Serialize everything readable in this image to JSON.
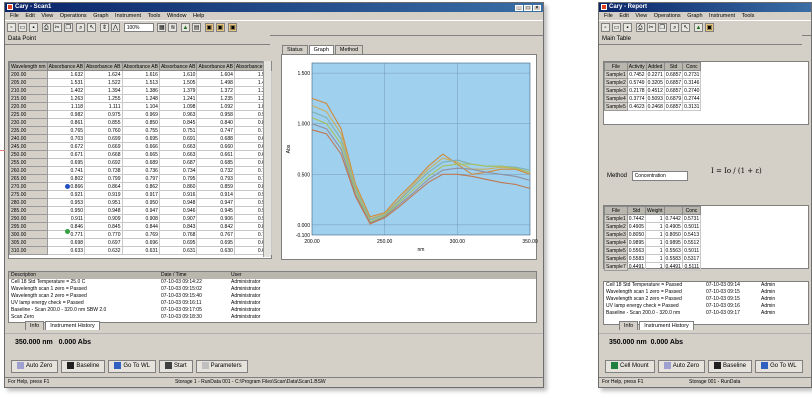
{
  "colors": {
    "title_bar": "#0a246a",
    "plot_bg": "#9fd0ee",
    "window_bg": "#d4d0c8",
    "connector": "#e07a7a"
  },
  "win1": {
    "title": "Cary - Scan1",
    "menu": [
      "File",
      "Edit",
      "View",
      "Operations",
      "Graph",
      "Instrument",
      "Tools",
      "Window",
      "Help"
    ],
    "toolbar_select": "100%",
    "panel_title": "Data Point",
    "tabs": [
      "Status",
      "Graph",
      "Method"
    ],
    "columns": [
      "Wavelength nm",
      "Absorbance AB",
      "Absorbance AB",
      "Absorbance AB",
      "Absorbance AB",
      "Absorbance AB",
      "Absorbance AB"
    ],
    "rows": [
      [
        "200.00",
        "1.632",
        "1.624",
        "1.616",
        "1.610",
        "1.604",
        "1.598"
      ],
      [
        "205.00",
        "1.531",
        "1.522",
        "1.513",
        "1.505",
        "1.498",
        "1.492"
      ],
      [
        "210.00",
        "1.402",
        "1.394",
        "1.386",
        "1.379",
        "1.372",
        "1.366"
      ],
      [
        "215.00",
        "1.263",
        "1.255",
        "1.248",
        "1.241",
        "1.235",
        "1.229"
      ],
      [
        "220.00",
        "1.118",
        "1.111",
        "1.104",
        "1.098",
        "1.092",
        "1.087"
      ],
      [
        "225.00",
        "0.982",
        "0.975",
        "0.969",
        "0.963",
        "0.958",
        "0.953"
      ],
      [
        "230.00",
        "0.861",
        "0.855",
        "0.850",
        "0.845",
        "0.840",
        "0.836"
      ],
      [
        "235.00",
        "0.765",
        "0.760",
        "0.755",
        "0.751",
        "0.747",
        "0.743"
      ],
      [
        "240.00",
        "0.703",
        "0.699",
        "0.695",
        "0.691",
        "0.688",
        "0.685"
      ],
      [
        "245.00",
        "0.672",
        "0.669",
        "0.666",
        "0.663",
        "0.660",
        "0.658"
      ],
      [
        "250.00",
        "0.671",
        "0.668",
        "0.665",
        "0.663",
        "0.661",
        "0.659"
      ],
      [
        "255.00",
        "0.695",
        "0.692",
        "0.689",
        "0.687",
        "0.685",
        "0.683"
      ],
      [
        "260.00",
        "0.741",
        "0.738",
        "0.736",
        "0.734",
        "0.732",
        "0.730"
      ],
      [
        "265.00",
        "0.802",
        "0.799",
        "0.797",
        "0.795",
        "0.793",
        "0.792"
      ],
      [
        "270.00",
        "0.866",
        "0.864",
        "0.862",
        "0.860",
        "0.859",
        "0.857"
      ],
      [
        "275.00",
        "0.921",
        "0.919",
        "0.917",
        "0.916",
        "0.914",
        "0.913"
      ],
      [
        "280.00",
        "0.953",
        "0.951",
        "0.950",
        "0.948",
        "0.947",
        "0.946"
      ],
      [
        "285.00",
        "0.950",
        "0.948",
        "0.947",
        "0.946",
        "0.945",
        "0.944"
      ],
      [
        "290.00",
        "0.911",
        "0.909",
        "0.908",
        "0.907",
        "0.906",
        "0.905"
      ],
      [
        "295.00",
        "0.846",
        "0.845",
        "0.844",
        "0.843",
        "0.842",
        "0.841"
      ],
      [
        "300.00",
        "0.771",
        "0.770",
        "0.769",
        "0.768",
        "0.767",
        "0.766"
      ],
      [
        "305.00",
        "0.698",
        "0.697",
        "0.696",
        "0.695",
        "0.695",
        "0.694"
      ],
      [
        "310.00",
        "0.633",
        "0.632",
        "0.631",
        "0.631",
        "0.630",
        "0.630"
      ]
    ],
    "log_columns": [
      "Description",
      "Date / Time",
      "User"
    ],
    "log_rows": [
      [
        "Cell 18 Std Temperature = 25.0 C",
        "07-10-03 09:14:22",
        "Administrator"
      ],
      [
        "Wavelength scan 1 zero = Passed",
        "07-10-03 09:15:02",
        "Administrator"
      ],
      [
        "Wavelength scan 2 zero = Passed",
        "07-10-03 09:15:40",
        "Administrator"
      ],
      [
        "UV lamp energy check = Passed",
        "07-10-03 09:16:11",
        "Administrator"
      ],
      [
        "Baseline - Scan 200.0 - 320.0 nm SBW 2.0",
        "07-10-03 09:17:05",
        "Administrator"
      ],
      [
        "Scan Zero",
        "07-10-03 09:18:30",
        "Administrator"
      ]
    ],
    "log_tabs": [
      "Info",
      "Instrument History"
    ],
    "readout_wl": "350.000 nm",
    "readout_abs": "0.000 Abs",
    "buttons": [
      "Auto Zero",
      "Baseline",
      "Go To WL",
      "Start",
      "Parameters"
    ],
    "status": "For Help, press F1",
    "status_right": "Storage 1 - RunData 001 - C:\\Program Files\\Scan\\Data\\Scan1.BSW"
  },
  "plot": {
    "ylabel": "Abs",
    "xlabel": "nm",
    "xticks": [
      "200.00",
      "250.00",
      "300.00",
      "350.00"
    ],
    "yticks": [
      "1.500",
      "1.000",
      "0.500",
      "0.000",
      "-0.100"
    ]
  },
  "chart_data": {
    "type": "line",
    "title": "",
    "xlabel": "nm",
    "ylabel": "Abs",
    "xlim": [
      200,
      350
    ],
    "ylim": [
      -0.1,
      1.6
    ],
    "grid": true,
    "x": [
      200,
      210,
      220,
      230,
      240,
      250,
      260,
      270,
      280,
      290,
      300,
      310,
      320,
      330,
      340,
      350
    ],
    "series": [
      {
        "color": "#d08a3a",
        "values": [
          1.25,
          1.2,
          0.95,
          0.4,
          0.08,
          0.12,
          0.28,
          0.42,
          0.58,
          0.7,
          0.6,
          0.5,
          0.52,
          0.55,
          0.55,
          0.5
        ]
      },
      {
        "color": "#c8b060",
        "values": [
          1.18,
          1.12,
          0.9,
          0.38,
          0.06,
          0.11,
          0.25,
          0.4,
          0.55,
          0.66,
          0.62,
          0.55,
          0.55,
          0.57,
          0.56,
          0.52
        ]
      },
      {
        "color": "#80b0b0",
        "values": [
          1.12,
          1.06,
          0.85,
          0.36,
          0.05,
          0.1,
          0.24,
          0.38,
          0.52,
          0.62,
          0.64,
          0.6,
          0.58,
          0.58,
          0.57,
          0.54
        ]
      },
      {
        "color": "#a8c060",
        "values": [
          1.06,
          1.0,
          0.8,
          0.33,
          0.03,
          0.09,
          0.22,
          0.35,
          0.48,
          0.58,
          0.6,
          0.6,
          0.58,
          0.58,
          0.56,
          0.52
        ]
      },
      {
        "color": "#9090a0",
        "values": [
          1.0,
          0.95,
          0.75,
          0.3,
          0.02,
          0.08,
          0.2,
          0.32,
          0.45,
          0.54,
          0.56,
          0.55,
          0.52,
          0.5,
          0.48,
          0.44
        ]
      },
      {
        "color": "#c07850",
        "values": [
          0.94,
          0.9,
          0.7,
          0.28,
          0.01,
          0.07,
          0.18,
          0.3,
          0.42,
          0.5,
          0.5,
          0.48,
          0.45,
          0.42,
          0.4,
          0.36
        ]
      }
    ]
  },
  "win2": {
    "title": "Cary - Report",
    "menu": [
      "File",
      "Edit",
      "View",
      "Operations",
      "Graph",
      "Instrument",
      "Tools",
      "Window",
      "Help"
    ],
    "panel_title": "Main Table",
    "columns": [
      "File",
      "Activity",
      "Added",
      "Std",
      "Conc"
    ],
    "rows": [
      [
        "Sample1",
        "0.7452",
        "0.2271",
        "0.6857",
        "0.2731"
      ],
      [
        "Sample2",
        "0.5749",
        "0.3205",
        "0.6857",
        "0.3146"
      ],
      [
        "Sample3",
        "0.2178",
        "0.4512",
        "0.6857",
        "0.2740"
      ],
      [
        "Sample4",
        "0.3774",
        "0.5093",
        "0.6879",
        "0.2744"
      ],
      [
        "Sample5",
        "0.4623",
        "0.2468",
        "0.6857",
        "0.3131"
      ]
    ],
    "method_label": "Method",
    "method_value": "Concentration",
    "formula": "I = Io / (1 + ε)",
    "columns2": [
      "File",
      "Std",
      "Weight",
      "",
      "Conc"
    ],
    "rows2": [
      [
        "Sample1",
        "0.7442",
        "1",
        "0.7442",
        "0.5731"
      ],
      [
        "Sample2",
        "0.4905",
        "1",
        "0.4905",
        "0.5011"
      ],
      [
        "Sample3",
        "0.8050",
        "1",
        "0.8050",
        "0.5413"
      ],
      [
        "Sample4",
        "0.9895",
        "1",
        "0.9895",
        "0.5512"
      ],
      [
        "Sample5",
        "0.5563",
        "1",
        "0.5563",
        "0.5011"
      ],
      [
        "Sample6",
        "0.5583",
        "1",
        "0.5583",
        "0.5317"
      ],
      [
        "Sample7",
        "0.4491",
        "1",
        "0.4491",
        "0.5111"
      ]
    ],
    "log_rows": [
      [
        "Cell 18 Std Temperature = Passed",
        "07-10-03 09:14",
        "Admin"
      ],
      [
        "Wavelength scan 1 zero = Passed",
        "07-10-03 09:15",
        "Admin"
      ],
      [
        "Wavelength scan 2 zero = Passed",
        "07-10-03 09:15",
        "Admin"
      ],
      [
        "UV lamp energy check = Passed",
        "07-10-03 09:16",
        "Admin"
      ],
      [
        "Baseline - Scan 200.0 - 320.0 nm",
        "07-10-03 09:17",
        "Admin"
      ]
    ],
    "log_tabs": [
      "Info",
      "Instrument History"
    ],
    "readout_wl": "350.000 nm",
    "readout_abs": "0.000 Abs",
    "buttons": [
      "Cell Mount",
      "Auto Zero",
      "Baseline",
      "Go To WL"
    ],
    "status": "For Help, press F1",
    "status_right": "Storage 001 - RunData"
  }
}
